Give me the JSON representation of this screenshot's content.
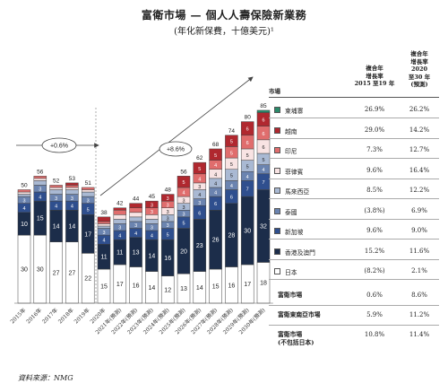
{
  "title": "富衛市場 — 個人人壽保險新業務",
  "subtitle": "(年化新保費，十億美元)¹",
  "source": "資料來源：NMG",
  "colors": {
    "japan": "#ffffff",
    "hk_macau": "#1c2d4a",
    "singapore": "#2f4f8e",
    "thailand": "#6b84b0",
    "malaysia": "#a9b9d3",
    "philippines": "#f8e3e3",
    "indonesia": "#e06d6d",
    "vietnam": "#b0282f",
    "cambodia": "#2a8a6a"
  },
  "cagr_annotations": [
    {
      "text": "+0.6%"
    },
    {
      "text": "+8.6%"
    }
  ],
  "table": {
    "col_market": "市場",
    "col_hist": "複合年增長率 2015至19年",
    "col_hist_lines": [
      "複合年",
      "增長率",
      "2015 至19 年"
    ],
    "col_fcst_lines": [
      "複合年",
      "增長率",
      "2020",
      "至30 年",
      "(預測)"
    ],
    "rows": [
      {
        "key": "cambodia",
        "label": "柬埔寨",
        "hist": "26.9%",
        "fcst": "26.2%"
      },
      {
        "key": "vietnam",
        "label": "越南",
        "hist": "29.0%",
        "fcst": "14.2%"
      },
      {
        "key": "indonesia",
        "label": "印尼",
        "hist": "7.3%",
        "fcst": "12.7%"
      },
      {
        "key": "philippines",
        "label": "菲律賓",
        "hist": "9.6%",
        "fcst": "16.4%"
      },
      {
        "key": "malaysia",
        "label": "馬來西亞",
        "hist": "8.5%",
        "fcst": "12.2%"
      },
      {
        "key": "thailand",
        "label": "泰國",
        "hist": "(3.8%)",
        "fcst": "6.9%"
      },
      {
        "key": "singapore",
        "label": "新加坡",
        "hist": "9.6%",
        "fcst": "9.0%"
      },
      {
        "key": "hk_macau",
        "label": "香港及澳門",
        "hist": "15.2%",
        "fcst": "11.6%"
      },
      {
        "key": "japan",
        "label": "日本",
        "hist": "(8.2%)",
        "fcst": "2.1%"
      }
    ],
    "summary": [
      {
        "label": "富衛市場",
        "hist": "0.6%",
        "fcst": "8.6%"
      },
      {
        "label": "富衛東南亞市場",
        "hist": "5.9%",
        "fcst": "11.2%"
      },
      {
        "label": "富衛市場(不包括日本)",
        "label_lines": [
          "富衛市場",
          "(不包括日本)"
        ],
        "hist": "10.8%",
        "fcst": "11.4%"
      }
    ]
  },
  "chart_data": {
    "type": "bar",
    "stacked": true,
    "categories": [
      "2015年",
      "2016年",
      "2017年",
      "2018年",
      "2019年",
      "2020年",
      "2021年(預測)",
      "2022年(預測)",
      "2023年(預測)",
      "2024年(預測)",
      "2025年(預測)",
      "2026年(預測)",
      "2027年(預測)",
      "2028年(預測)",
      "2029年(預測)",
      "2030年(預測)"
    ],
    "totals": [
      50,
      56,
      52,
      53,
      51,
      38,
      42,
      44,
      45,
      48,
      56,
      62,
      68,
      74,
      80,
      85
    ],
    "series": [
      {
        "key": "japan",
        "name": "日本",
        "values": [
          30,
          30,
          27,
          27,
          22,
          15,
          17,
          16,
          14,
          12,
          13,
          14,
          15,
          16,
          17,
          18
        ]
      },
      {
        "key": "hk_macau",
        "name": "香港及澳門",
        "values": [
          10,
          15,
          14,
          14,
          17,
          11,
          11,
          13,
          14,
          16,
          20,
          23,
          26,
          28,
          30,
          32
        ]
      },
      {
        "key": "singapore",
        "name": "新加坡",
        "values": [
          4,
          4,
          4,
          4,
          5,
          4,
          4,
          4,
          4,
          5,
          5,
          6,
          6,
          6,
          7,
          7
        ]
      },
      {
        "key": "thailand",
        "name": "泰國",
        "values": [
          3,
          3,
          3,
          3,
          3,
          3,
          3,
          3,
          3,
          3,
          3,
          3,
          4,
          4,
          4,
          4
        ]
      },
      {
        "key": "malaysia",
        "name": "馬來西亞",
        "values": [
          1,
          2,
          2,
          2,
          2,
          1,
          2,
          2,
          2,
          3,
          3,
          4,
          4,
          5,
          5,
          5
        ]
      },
      {
        "key": "philippines",
        "name": "菲律賓",
        "values": [
          1,
          1,
          1,
          1,
          1,
          1,
          2,
          2,
          2,
          3,
          3,
          3,
          4,
          5,
          5,
          6
        ]
      },
      {
        "key": "indonesia",
        "name": "印尼",
        "values": [
          1,
          1,
          1,
          1,
          1,
          1,
          2,
          2,
          3,
          3,
          4,
          4,
          4,
          5,
          6,
          6
        ]
      },
      {
        "key": "vietnam",
        "name": "越南",
        "values": [
          0,
          0,
          0,
          1,
          0,
          2,
          1,
          2,
          3,
          3,
          5,
          5,
          5,
          5,
          6,
          6
        ]
      },
      {
        "key": "cambodia",
        "name": "柬埔寨",
        "values": [
          0,
          0,
          0,
          0,
          0,
          0,
          0,
          0,
          0,
          0,
          0,
          0,
          0,
          0,
          0,
          1
        ]
      }
    ],
    "labeled_segments": [
      "japan",
      "hk_macau",
      "singapore",
      "thailand",
      "malaysia",
      "philippines",
      "indonesia",
      "vietnam"
    ],
    "ylim": [
      0,
      90
    ]
  }
}
